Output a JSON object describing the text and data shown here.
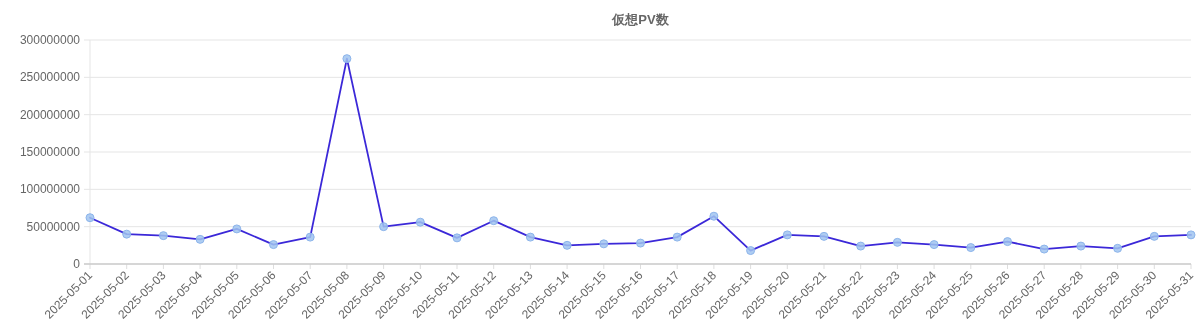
{
  "chart_data": {
    "type": "line",
    "title": "仮想PV数",
    "categories": [
      "2025-05-01",
      "2025-05-02",
      "2025-05-03",
      "2025-05-04",
      "2025-05-05",
      "2025-05-06",
      "2025-05-07",
      "2025-05-08",
      "2025-05-09",
      "2025-05-10",
      "2025-05-11",
      "2025-05-12",
      "2025-05-13",
      "2025-05-14",
      "2025-05-15",
      "2025-05-16",
      "2025-05-17",
      "2025-05-18",
      "2025-05-19",
      "2025-05-20",
      "2025-05-21",
      "2025-05-22",
      "2025-05-23",
      "2025-05-24",
      "2025-05-25",
      "2025-05-26",
      "2025-05-27",
      "2025-05-28",
      "2025-05-29",
      "2025-05-30",
      "2025-05-31"
    ],
    "series": [
      {
        "color": "#3b28d8",
        "values": [
          62000000,
          40000000,
          38000000,
          33000000,
          47000000,
          26000000,
          36000000,
          275000000,
          50000000,
          56000000,
          35000000,
          58000000,
          36000000,
          25000000,
          27000000,
          28000000,
          36000000,
          64000000,
          18000000,
          39000000,
          37000000,
          24000000,
          29000000,
          26000000,
          22000000,
          30000000,
          20000000,
          24000000,
          21000000,
          37000000,
          39000000
        ]
      }
    ],
    "ylim": [
      0,
      300000000
    ],
    "yticks": [
      0,
      50000000,
      100000000,
      150000000,
      200000000,
      250000000,
      300000000
    ],
    "grid": "y",
    "marker": "circle",
    "line_style": "solid"
  }
}
